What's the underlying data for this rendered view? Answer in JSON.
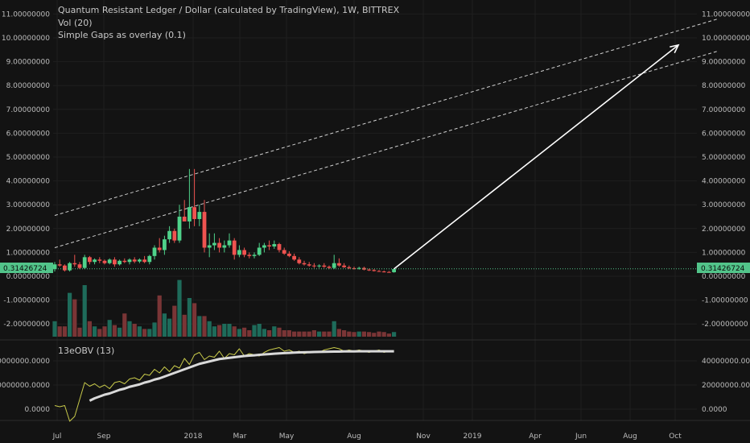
{
  "title": "Quantum Resistant Ledger / Dollar (calculated by TradingView), 1W, BITTREX",
  "indicators": {
    "volume": "Vol (20)",
    "gaps": "Simple Gaps as overlay (0.1)",
    "obv": "13eOBV (13)"
  },
  "colors": {
    "background": "#131313",
    "grid": "#1f1f1f",
    "up": "#26a69a",
    "up_candle": "#4fd28a",
    "down": "#ef5350",
    "up_volume": "#1e6b5a",
    "down_volume": "#7a3536",
    "obv_line": "#c7c94a",
    "obv_ma": "#d9d9d9",
    "price_tag": "#52c48a",
    "channel": "#cfcfcf",
    "arrow": "#ffffff"
  },
  "current_price": "0.31426724",
  "chart_data": [
    {
      "type": "candlestick",
      "title": "Quantum Resistant Ledger / Dollar (calculated by TradingView), 1W, BITTREX",
      "price_axis_labels": [
        "11.00000000",
        "10.00000000",
        "9.00000000",
        "8.00000000",
        "7.00000000",
        "6.00000000",
        "5.00000000",
        "4.00000000",
        "3.00000000",
        "2.00000000",
        "1.00000000",
        "0.00000000",
        "-1.00000000",
        "-2.00000000"
      ],
      "time_axis_labels": [
        "Jul",
        "Sep",
        "2018",
        "Mar",
        "May",
        "Aug",
        "Nov",
        "2019",
        "Apr",
        "Jun",
        "Aug",
        "Oct"
      ],
      "last_price": 0.31426724,
      "candles": [
        {
          "o": 0.3,
          "h": 0.6,
          "l": 0.2,
          "c": 0.5
        },
        {
          "o": 0.5,
          "h": 0.7,
          "l": 0.4,
          "c": 0.45
        },
        {
          "o": 0.45,
          "h": 0.5,
          "l": 0.2,
          "c": 0.25
        },
        {
          "o": 0.25,
          "h": 0.6,
          "l": 0.2,
          "c": 0.55
        },
        {
          "o": 0.55,
          "h": 0.9,
          "l": 0.4,
          "c": 0.5
        },
        {
          "o": 0.5,
          "h": 0.6,
          "l": 0.3,
          "c": 0.35
        },
        {
          "o": 0.35,
          "h": 0.9,
          "l": 0.3,
          "c": 0.8
        },
        {
          "o": 0.8,
          "h": 0.85,
          "l": 0.5,
          "c": 0.6
        },
        {
          "o": 0.6,
          "h": 0.75,
          "l": 0.5,
          "c": 0.7
        },
        {
          "o": 0.7,
          "h": 0.8,
          "l": 0.55,
          "c": 0.65
        },
        {
          "o": 0.65,
          "h": 0.7,
          "l": 0.5,
          "c": 0.55
        },
        {
          "o": 0.55,
          "h": 0.75,
          "l": 0.5,
          "c": 0.7
        },
        {
          "o": 0.7,
          "h": 0.8,
          "l": 0.4,
          "c": 0.5
        },
        {
          "o": 0.5,
          "h": 0.7,
          "l": 0.45,
          "c": 0.65
        },
        {
          "o": 0.65,
          "h": 0.75,
          "l": 0.55,
          "c": 0.6
        },
        {
          "o": 0.6,
          "h": 0.75,
          "l": 0.5,
          "c": 0.7
        },
        {
          "o": 0.7,
          "h": 0.8,
          "l": 0.55,
          "c": 0.62
        },
        {
          "o": 0.62,
          "h": 0.75,
          "l": 0.55,
          "c": 0.7
        },
        {
          "o": 0.7,
          "h": 0.85,
          "l": 0.55,
          "c": 0.6
        },
        {
          "o": 0.6,
          "h": 0.9,
          "l": 0.5,
          "c": 0.85
        },
        {
          "o": 0.85,
          "h": 1.3,
          "l": 0.7,
          "c": 1.2
        },
        {
          "o": 1.2,
          "h": 1.6,
          "l": 1.0,
          "c": 1.1
        },
        {
          "o": 1.1,
          "h": 1.7,
          "l": 0.9,
          "c": 1.55
        },
        {
          "o": 1.55,
          "h": 2.1,
          "l": 1.4,
          "c": 1.9
        },
        {
          "o": 1.9,
          "h": 2.0,
          "l": 1.4,
          "c": 1.5
        },
        {
          "o": 1.5,
          "h": 3.0,
          "l": 1.4,
          "c": 2.5
        },
        {
          "o": 2.5,
          "h": 3.2,
          "l": 2.3,
          "c": 2.3
        },
        {
          "o": 2.3,
          "h": 4.5,
          "l": 2.0,
          "c": 2.9
        },
        {
          "o": 2.9,
          "h": 4.5,
          "l": 2.1,
          "c": 2.4
        },
        {
          "o": 2.4,
          "h": 3.0,
          "l": 2.1,
          "c": 2.7
        },
        {
          "o": 2.7,
          "h": 3.2,
          "l": 1.0,
          "c": 1.2
        },
        {
          "o": 1.2,
          "h": 1.8,
          "l": 0.8,
          "c": 1.3
        },
        {
          "o": 1.3,
          "h": 1.8,
          "l": 1.1,
          "c": 1.4
        },
        {
          "o": 1.4,
          "h": 1.6,
          "l": 1.0,
          "c": 1.2
        },
        {
          "o": 1.2,
          "h": 1.5,
          "l": 1.0,
          "c": 1.3
        },
        {
          "o": 1.3,
          "h": 1.8,
          "l": 1.2,
          "c": 1.5
        },
        {
          "o": 1.5,
          "h": 1.6,
          "l": 0.7,
          "c": 0.9
        },
        {
          "o": 0.9,
          "h": 1.3,
          "l": 0.8,
          "c": 1.1
        },
        {
          "o": 1.1,
          "h": 1.2,
          "l": 0.8,
          "c": 0.9
        },
        {
          "o": 0.9,
          "h": 1.0,
          "l": 0.75,
          "c": 0.85
        },
        {
          "o": 0.85,
          "h": 1.0,
          "l": 0.75,
          "c": 0.9
        },
        {
          "o": 0.9,
          "h": 1.4,
          "l": 0.85,
          "c": 1.2
        },
        {
          "o": 1.2,
          "h": 1.4,
          "l": 1.0,
          "c": 1.3
        },
        {
          "o": 1.3,
          "h": 1.5,
          "l": 1.1,
          "c": 1.25
        },
        {
          "o": 1.25,
          "h": 1.5,
          "l": 1.15,
          "c": 1.35
        },
        {
          "o": 1.35,
          "h": 1.4,
          "l": 1.0,
          "c": 1.1
        },
        {
          "o": 1.1,
          "h": 1.2,
          "l": 0.9,
          "c": 0.95
        },
        {
          "o": 0.95,
          "h": 1.05,
          "l": 0.8,
          "c": 0.85
        },
        {
          "o": 0.85,
          "h": 0.95,
          "l": 0.65,
          "c": 0.7
        },
        {
          "o": 0.7,
          "h": 0.8,
          "l": 0.5,
          "c": 0.55
        },
        {
          "o": 0.55,
          "h": 0.65,
          "l": 0.45,
          "c": 0.5
        },
        {
          "o": 0.5,
          "h": 0.6,
          "l": 0.4,
          "c": 0.45
        },
        {
          "o": 0.45,
          "h": 0.55,
          "l": 0.35,
          "c": 0.42
        },
        {
          "o": 0.42,
          "h": 0.5,
          "l": 0.35,
          "c": 0.45
        },
        {
          "o": 0.45,
          "h": 0.55,
          "l": 0.35,
          "c": 0.4
        },
        {
          "o": 0.4,
          "h": 0.45,
          "l": 0.3,
          "c": 0.35
        },
        {
          "o": 0.35,
          "h": 0.9,
          "l": 0.3,
          "c": 0.55
        },
        {
          "o": 0.55,
          "h": 0.75,
          "l": 0.4,
          "c": 0.45
        },
        {
          "o": 0.45,
          "h": 0.55,
          "l": 0.35,
          "c": 0.38
        },
        {
          "o": 0.38,
          "h": 0.45,
          "l": 0.3,
          "c": 0.34
        },
        {
          "o": 0.34,
          "h": 0.4,
          "l": 0.28,
          "c": 0.32
        },
        {
          "o": 0.32,
          "h": 0.4,
          "l": 0.28,
          "c": 0.35
        },
        {
          "o": 0.35,
          "h": 0.4,
          "l": 0.25,
          "c": 0.28
        },
        {
          "o": 0.28,
          "h": 0.32,
          "l": 0.22,
          "c": 0.26
        },
        {
          "o": 0.26,
          "h": 0.3,
          "l": 0.2,
          "c": 0.22
        },
        {
          "o": 0.22,
          "h": 0.26,
          "l": 0.18,
          "c": 0.2
        },
        {
          "o": 0.2,
          "h": 0.24,
          "l": 0.16,
          "c": 0.18
        },
        {
          "o": 0.18,
          "h": 0.22,
          "l": 0.15,
          "c": 0.17
        },
        {
          "o": 0.17,
          "h": 0.32,
          "l": 0.15,
          "c": 0.3
        }
      ],
      "volume_axis_labels": [
        "-1.00000000",
        "-2.00000000"
      ],
      "volume": [
        0.6,
        0.4,
        0.4,
        1.7,
        1.45,
        0.35,
        2.0,
        0.6,
        0.4,
        0.3,
        0.4,
        0.65,
        0.45,
        0.35,
        0.9,
        0.6,
        0.5,
        0.4,
        0.3,
        0.3,
        0.55,
        1.6,
        0.9,
        0.7,
        1.2,
        2.2,
        0.85,
        1.5,
        1.3,
        0.8,
        0.8,
        0.6,
        0.4,
        0.45,
        0.5,
        0.5,
        0.4,
        0.3,
        0.35,
        0.25,
        0.45,
        0.5,
        0.3,
        0.25,
        0.4,
        0.35,
        0.25,
        0.25,
        0.2,
        0.2,
        0.2,
        0.2,
        0.25,
        0.2,
        0.2,
        0.2,
        0.6,
        0.3,
        0.25,
        0.2,
        0.18,
        0.2,
        0.2,
        0.18,
        0.15,
        0.2,
        0.18,
        0.12,
        0.18
      ],
      "channel_lines": [
        {
          "t1": 0,
          "p1": 2.55,
          "t2": 133,
          "p2": 10.8
        },
        {
          "t1": 0,
          "p1": 1.2,
          "t2": 133,
          "p2": 9.45
        }
      ],
      "arrow": {
        "t1": 68,
        "p1": 0.31,
        "t2": 125,
        "p2": 9.7
      }
    },
    {
      "type": "line",
      "title": "13eOBV (13)",
      "y_axis_labels": [
        "40000000.0000",
        "20000000.0000",
        "0.0000"
      ],
      "series": [
        {
          "values": [
            3000000,
            2000000,
            3000000,
            -10000000,
            -6000000,
            8000000,
            22000000,
            19000000,
            21000000,
            18000000,
            20000000,
            17000000,
            22000000,
            23000000,
            21000000,
            25000000,
            26000000,
            24000000,
            29000000,
            28000000,
            33000000,
            30000000,
            35000000,
            31000000,
            36000000,
            34000000,
            42000000,
            37000000,
            45000000,
            47000000,
            41000000,
            44000000,
            43000000,
            48000000,
            42000000,
            46000000,
            45000000,
            50000000,
            44000000,
            46000000,
            45000000,
            44000000,
            47000000,
            49000000,
            50000000,
            51000000,
            48000000,
            49000000,
            47000000,
            48000000,
            46000000,
            47000000,
            48000000,
            47000000,
            49000000,
            50000000,
            51000000,
            50000000,
            48000000,
            49000000,
            48000000,
            49000000,
            48000000,
            47000000,
            48000000,
            49000000,
            47000000,
            48000000,
            48000000
          ]
        },
        {
          "values": [
            null,
            null,
            null,
            null,
            null,
            null,
            null,
            7000000,
            9000000,
            10500000,
            12000000,
            13000000,
            14500000,
            16000000,
            17000000,
            18500000,
            19500000,
            20500000,
            22000000,
            23000000,
            24500000,
            25500000,
            27000000,
            28500000,
            30000000,
            31500000,
            33000000,
            34500000,
            36000000,
            37500000,
            38500000,
            39500000,
            40500000,
            41500000,
            42000000,
            42500000,
            43000000,
            43500000,
            44000000,
            44300000,
            44600000,
            45000000,
            45300000,
            45600000,
            45900000,
            46200000,
            46400000,
            46600000,
            46800000,
            47000000,
            47100000,
            47200000,
            47300000,
            47400000,
            47500000,
            47600000,
            47700000,
            47700000,
            47800000,
            47800000,
            47800000,
            47900000,
            47900000,
            47900000,
            47900000,
            47900000,
            47900000,
            47900000,
            47900000
          ]
        }
      ]
    }
  ]
}
